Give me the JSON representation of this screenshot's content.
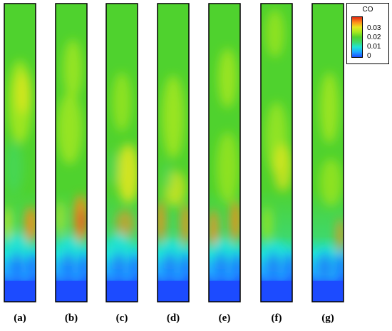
{
  "colormap": {
    "stops": [
      "#1c4bff",
      "#1fa7ff",
      "#1fe3d7",
      "#3fd86a",
      "#50d22f",
      "#a6e81f",
      "#e8e71f",
      "#ff8a1a",
      "#e02a14"
    ],
    "border": "#000000"
  },
  "legend": {
    "title": "CO",
    "ticks": [
      "0.03",
      "0.02",
      "0.01",
      "0"
    ]
  },
  "panels": [
    {
      "label": "(a)"
    },
    {
      "label": "(b)"
    },
    {
      "label": "(c)"
    },
    {
      "label": "(d)"
    },
    {
      "label": "(e)"
    },
    {
      "label": "(f)"
    },
    {
      "label": "(g)"
    }
  ]
}
